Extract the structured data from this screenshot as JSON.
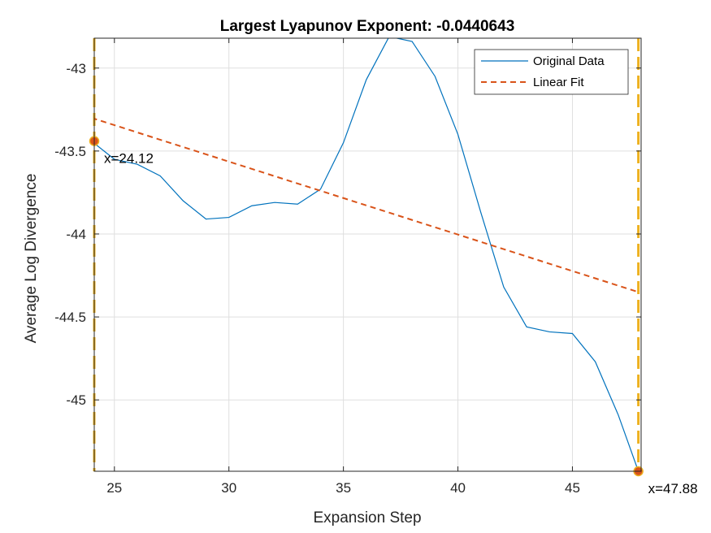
{
  "chart_data": {
    "type": "line",
    "title": "Largest Lyapunov Exponent: -0.0440643",
    "xlabel": "Expansion Step",
    "ylabel": "Average Log Divergence",
    "xlim": [
      24.12,
      48.0
    ],
    "ylim": [
      -45.43,
      -42.82
    ],
    "xticks": [
      25,
      30,
      35,
      40,
      45
    ],
    "yticks": [
      -43,
      -43.5,
      -44,
      -44.5,
      -45
    ],
    "xtick_labels": [
      "25",
      "30",
      "35",
      "40",
      "45"
    ],
    "ytick_labels": [
      "-43",
      "-43.5",
      "-44",
      "-44.5",
      "-45"
    ],
    "grid": true,
    "legend_position": "top-right",
    "series": [
      {
        "name": "Original Data",
        "style": "solid",
        "color": "#0072BD",
        "x": [
          24,
          25,
          26,
          27,
          28,
          29,
          30,
          31,
          32,
          33,
          34,
          35,
          36,
          37,
          38,
          39,
          40,
          41,
          42,
          43,
          44,
          45,
          46,
          47,
          47.88
        ],
        "y": [
          -43.44,
          -43.55,
          -43.58,
          -43.65,
          -43.8,
          -43.91,
          -43.9,
          -43.83,
          -43.81,
          -43.82,
          -43.73,
          -43.45,
          -43.07,
          -42.81,
          -42.84,
          -43.05,
          -43.4,
          -43.87,
          -44.32,
          -44.56,
          -44.59,
          -44.6,
          -44.77,
          -45.09,
          -45.43
        ]
      },
      {
        "name": "Linear Fit",
        "style": "dashed",
        "color": "#D95319",
        "x": [
          24,
          47.88
        ],
        "y": [
          -43.3,
          -44.35
        ]
      }
    ],
    "vertical_lines": [
      {
        "x": 24.12,
        "color": "#EDB120",
        "style": "dashed"
      },
      {
        "x": 47.88,
        "color": "#EDB120",
        "style": "dashed"
      }
    ],
    "markers": [
      {
        "x": 24.12,
        "y": -43.44,
        "label": "x=24.12",
        "color": "#D95319"
      },
      {
        "x": 47.88,
        "y": -45.43,
        "label": "x=47.88",
        "color": "#D95319"
      }
    ]
  }
}
